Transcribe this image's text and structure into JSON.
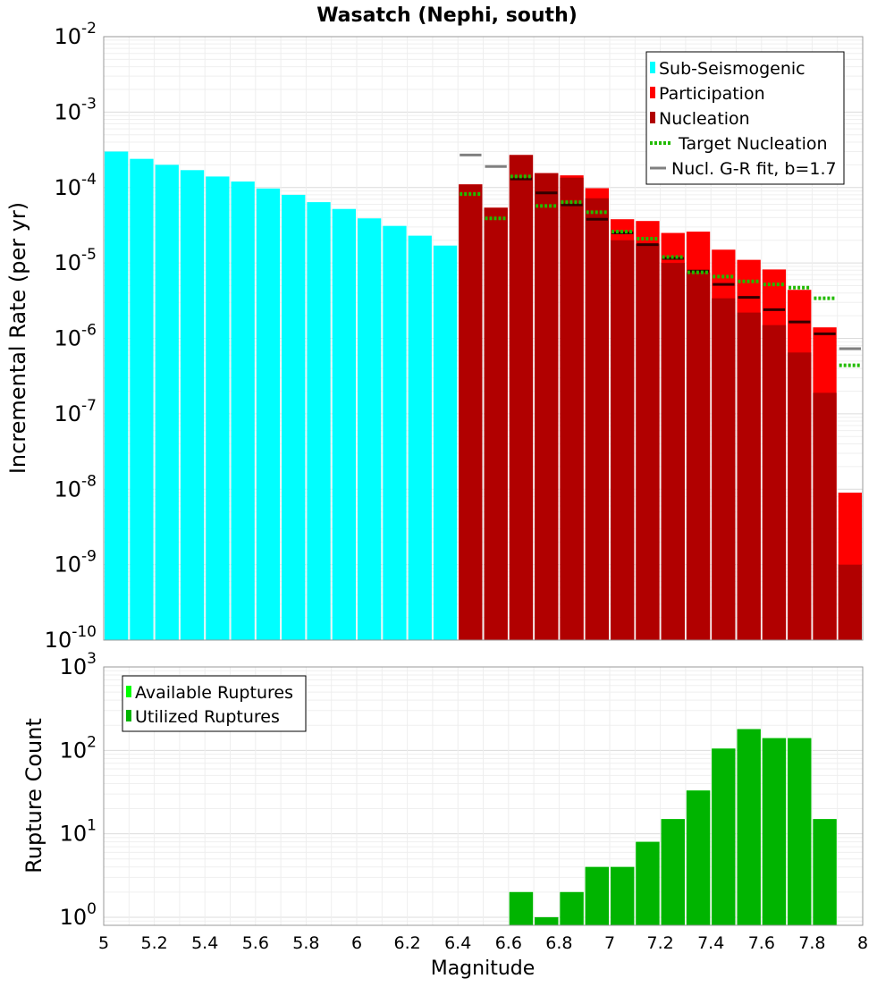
{
  "title": "Wasatch (Nephi, south)",
  "colors": {
    "sub_seismogenic": "#00ffff",
    "participation": "#ff0000",
    "nucleation": "#b10000",
    "target_nucleation": "#22bb00",
    "gr_fit": "#808080",
    "nucleation_marker": "#330000",
    "available": "#00ff00",
    "utilized": "#00b400"
  },
  "chart_data": [
    {
      "type": "bar",
      "title": "Wasatch (Nephi, south)",
      "ylabel": "Incremental Rate (per yr)",
      "xlabel": "",
      "xlim": [
        5,
        8
      ],
      "ylim": [
        1e-10,
        0.01
      ],
      "yscale": "log",
      "y_tick_labels": [
        {
          "base": "10",
          "exp": "-10"
        },
        {
          "base": "10",
          "exp": "-9"
        },
        {
          "base": "10",
          "exp": "-8"
        },
        {
          "base": "10",
          "exp": "-7"
        },
        {
          "base": "10",
          "exp": "-6"
        },
        {
          "base": "10",
          "exp": "-5"
        },
        {
          "base": "10",
          "exp": "-4"
        },
        {
          "base": "10",
          "exp": "-3"
        },
        {
          "base": "10",
          "exp": "-2"
        }
      ],
      "legend_position": "top-right",
      "legend": [
        {
          "label": "Sub-Seismogenic",
          "swatch": "bar",
          "color_key": "sub_seismogenic"
        },
        {
          "label": "Participation",
          "swatch": "bar",
          "color_key": "participation"
        },
        {
          "label": "Nucleation",
          "swatch": "bar",
          "color_key": "nucleation"
        },
        {
          "label": "Target Nucleation",
          "swatch": "dotted",
          "color_key": "target_nucleation"
        },
        {
          "label": "Nucl. G-R fit, b=1.7",
          "swatch": "line",
          "color_key": "gr_fit"
        }
      ],
      "bin_width": 0.1,
      "sub_seismogenic": {
        "x": [
          5.05,
          5.15,
          5.25,
          5.35,
          5.45,
          5.55,
          5.65,
          5.75,
          5.85,
          5.95,
          6.05,
          6.15,
          6.25,
          6.35
        ],
        "values": [
          0.0003,
          0.00024,
          0.0002,
          0.00017,
          0.00014,
          0.00012,
          9.7e-05,
          8e-05,
          6.4e-05,
          5.2e-05,
          3.9e-05,
          3.1e-05,
          2.3e-05,
          1.7e-05
        ]
      },
      "participation": {
        "x": [
          6.45,
          6.55,
          6.65,
          6.75,
          6.85,
          6.95,
          7.05,
          7.15,
          7.25,
          7.35,
          7.45,
          7.55,
          7.65,
          7.75,
          7.85,
          7.95
        ],
        "values": [
          0.00011,
          5.4e-05,
          0.00027,
          0.000155,
          0.000145,
          9.8e-05,
          3.8e-05,
          3.6e-05,
          2.5e-05,
          2.6e-05,
          1.5e-05,
          1.1e-05,
          8.2e-06,
          4.4e-06,
          1.4e-06,
          9e-09
        ]
      },
      "nucleation": {
        "x": [
          6.45,
          6.55,
          6.65,
          6.75,
          6.85,
          6.95,
          7.05,
          7.15,
          7.25,
          7.35,
          7.45,
          7.55,
          7.65,
          7.75,
          7.85,
          7.95
        ],
        "values": [
          0.00011,
          5.4e-05,
          0.00027,
          0.000155,
          0.000135,
          7.2e-05,
          2e-05,
          1.8e-05,
          1e-05,
          7.5e-06,
          3.4e-06,
          2.2e-06,
          1.5e-06,
          6.5e-07,
          1.9e-07,
          1e-09
        ]
      },
      "nucleation_markers": {
        "x": [
          6.65,
          6.75,
          6.85,
          6.95,
          7.05,
          7.15,
          7.25,
          7.35,
          7.45,
          7.55,
          7.65,
          7.75,
          7.85
        ],
        "values": [
          0.00013,
          8.5e-05,
          5.9e-05,
          3.8e-05,
          2.5e-05,
          1.75e-05,
          1.15e-05,
          7.8e-06,
          5.2e-06,
          3.5e-06,
          2.4e-06,
          1.65e-06,
          1.15e-06
        ]
      },
      "target_nucleation": {
        "x": [
          6.45,
          6.55,
          6.65,
          6.75,
          6.85,
          6.95,
          7.05,
          7.15,
          7.25,
          7.35,
          7.45,
          7.55,
          7.65,
          7.75,
          7.85,
          7.95
        ],
        "values": [
          8.2e-05,
          3.9e-05,
          0.00014,
          5.7e-05,
          6.4e-05,
          4.7e-05,
          2.6e-05,
          2.1e-05,
          1.2e-05,
          7.5e-06,
          6.6e-06,
          5.7e-06,
          5.2e-06,
          4.7e-06,
          3.4e-06,
          4.4e-07
        ]
      },
      "gr_fit": {
        "x": [
          6.45,
          6.55,
          7.95
        ],
        "values": [
          0.00027,
          0.00019,
          7.3e-07
        ]
      }
    },
    {
      "type": "bar",
      "title": "",
      "ylabel": "Rupture Count",
      "xlabel": "Magnitude",
      "xlim": [
        5,
        8
      ],
      "ylim": [
        0.8,
        1000
      ],
      "yscale": "log",
      "y_tick_labels": [
        {
          "base": "10",
          "exp": "0"
        },
        {
          "base": "10",
          "exp": "1"
        },
        {
          "base": "10",
          "exp": "2"
        },
        {
          "base": "10",
          "exp": "3"
        }
      ],
      "x_tick_labels": [
        "5",
        "5.2",
        "5.4",
        "5.6",
        "5.8",
        "6",
        "6.2",
        "6.4",
        "6.6",
        "6.8",
        "7",
        "7.2",
        "7.4",
        "7.6",
        "7.8",
        "8"
      ],
      "legend_position": "top-left",
      "legend": [
        {
          "label": "Available Ruptures",
          "swatch": "bar",
          "color_key": "available"
        },
        {
          "label": "Utilized Ruptures",
          "swatch": "bar",
          "color_key": "utilized"
        }
      ],
      "available": {
        "x": [
          6.65,
          6.75,
          6.85,
          6.95,
          7.05,
          7.15,
          7.25,
          7.35,
          7.45,
          7.55,
          7.65,
          7.75,
          7.85
        ],
        "values": [
          2,
          1,
          2,
          4,
          4,
          8,
          15,
          33,
          105,
          180,
          140,
          140,
          15
        ]
      },
      "utilized": {
        "x": [
          6.65,
          6.75,
          6.85,
          6.95,
          7.05,
          7.15,
          7.25,
          7.35,
          7.45,
          7.55,
          7.65,
          7.75,
          7.85
        ],
        "values": [
          2,
          1,
          2,
          4,
          4,
          8,
          15,
          33,
          105,
          180,
          140,
          140,
          15
        ]
      }
    }
  ]
}
